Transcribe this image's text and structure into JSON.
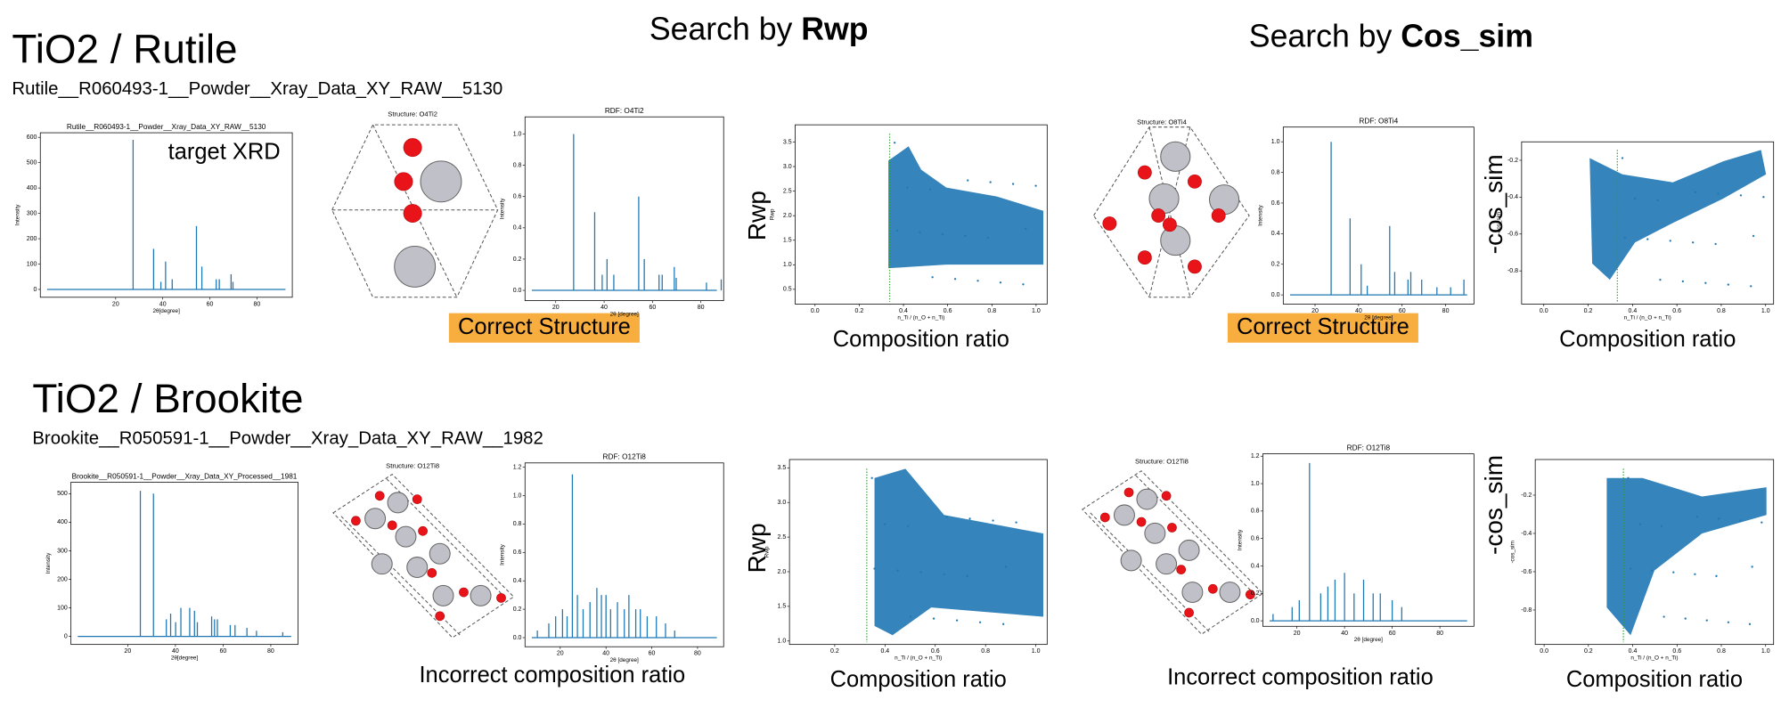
{
  "header": {
    "rwp_search": {
      "prefix": "Search by",
      "emphasis": "Rwp"
    },
    "cos_search": {
      "prefix": "Search by",
      "emphasis": "Cos_sim"
    }
  },
  "rows": [
    {
      "title": "TiO2 / Rutile",
      "file": "Rutile__R060493-1__Powder__Xray_Data_XY_RAW__5130",
      "target_xrd": {
        "title": "Rutile__R060493-1__Powder__Xray_Data_XY_RAW__5130",
        "annotation": "target XRD",
        "xlabel": "2θ[degree]",
        "ylabel": "Intensity",
        "xlim": [
          -12,
          95
        ],
        "ylim": [
          -31,
          618
        ],
        "xticks": [
          20,
          40,
          60,
          80
        ],
        "yticks": [
          0,
          100,
          200,
          300,
          400,
          500,
          600
        ],
        "color": "#1f77b4",
        "peaks": {
          "x": [
            27.4,
            36.1,
            39.2,
            41.2,
            44.0,
            54.3,
            56.6,
            62.7,
            64.0,
            69.0,
            69.8
          ],
          "y": [
            590,
            160,
            30,
            110,
            40,
            250,
            90,
            40,
            40,
            60,
            30
          ]
        }
      },
      "rwp": {
        "structure": "Structure: O4Ti2",
        "verdict": "Correct Structure",
        "verdict_color": "#f8ad3f",
        "rdf": {
          "title": "RDF: O4Ti2",
          "xlabel": "2θ [degree]",
          "ylabel": "Intensity",
          "xlim": [
            7.3,
            89.4
          ],
          "ylim": [
            -0.066,
            1.11
          ],
          "xticks": [
            20,
            40,
            60,
            80
          ],
          "yticks": [
            {
              "value": 0,
              "label": "0.0"
            },
            0.2,
            0.4,
            0.6,
            0.8,
            {
              "value": 1,
              "label": "1.0"
            }
          ],
          "color": "#1f77b4",
          "peaks": {
            "x": [
              27.4,
              36.1,
              39.2,
              41.2,
              44.0,
              54.3,
              56.6,
              62.7,
              64.0,
              69.0,
              69.8,
              82.3,
              88.4
            ],
            "y": [
              1.0,
              0.5,
              0.1,
              0.2,
              0.1,
              0.6,
              0.2,
              0.1,
              0.1,
              0.15,
              0.08,
              0.05,
              0.07
            ]
          }
        },
        "scatter": {
          "axis_title": "Rwp",
          "caption": "Composition ratio",
          "xlabel": "n_Ti / (n_O + n_Ti)",
          "ylabel": "Rwp",
          "xlim": [
            -0.09,
            1.05
          ],
          "ylim": [
            0.2,
            3.85
          ],
          "xticks": [
            {
              "value": 0,
              "label": "0.0"
            },
            0.2,
            0.4,
            0.6,
            0.8,
            {
              "value": 1,
              "label": "1.0"
            }
          ],
          "yticks": [
            0.5,
            {
              "value": 1,
              "label": "1.0"
            },
            1.5,
            {
              "value": 2,
              "label": "2.0"
            },
            2.5,
            {
              "value": 3,
              "label": "3.0"
            },
            3.5
          ],
          "color": "#1f77b4"
        }
      },
      "cos": {
        "structure": "Structure: O8Ti4",
        "verdict": "Correct Structure",
        "verdict_color": "#f8ad3f",
        "rdf": {
          "title": "RDF: O8Ti4",
          "xlabel": "2θ [degree]",
          "ylabel": "Intensity",
          "xlim": [
            5.4,
            93
          ],
          "ylim": [
            -0.06,
            1.096
          ],
          "xticks": [
            20,
            40,
            60,
            80
          ],
          "yticks": [
            {
              "value": 0,
              "label": "0.0"
            },
            0.2,
            0.4,
            0.6,
            0.8,
            {
              "value": 1,
              "label": "1.0"
            }
          ],
          "color": "#1f77b4",
          "peaks": {
            "x": [
              27.4,
              36.1,
              41.2,
              44.0,
              54.3,
              56.6,
              62.7,
              64.0,
              69.0,
              76.0,
              82.3,
              88.4
            ],
            "y": [
              1.0,
              0.5,
              0.2,
              0.06,
              0.45,
              0.15,
              0.1,
              0.15,
              0.1,
              0.05,
              0.05,
              0.1
            ]
          }
        },
        "scatter": {
          "axis_title": "-cos_sim",
          "caption": "Composition ratio",
          "xlabel": "n_Ti / (n_O + n_Ti)",
          "ylabel": "-cos_sim",
          "xlim": [
            -0.1,
            1.036
          ],
          "ylim": [
            -0.98,
            -0.1
          ],
          "xticks": [
            {
              "value": 0,
              "label": "0.0"
            },
            0.2,
            0.4,
            0.6,
            0.8,
            {
              "value": 1,
              "label": "1.0"
            }
          ],
          "yticks": [
            -0.8,
            -0.6,
            -0.4,
            -0.2
          ],
          "color": "#1f77b4"
        }
      }
    },
    {
      "title": "TiO2 / Brookite",
      "file": "Brookite__R050591-1__Powder__Xray_Data_XY_RAW__1982",
      "target_xrd": {
        "title": "Brookite__R050591-1__Powder__Xray_Data_XY_Processed__1981",
        "xlabel": "2θ[degree]",
        "ylabel": "Intensity",
        "xlim": [
          -3.8,
          91.4
        ],
        "ylim": [
          -28,
          540
        ],
        "xticks": [
          20,
          40,
          60,
          80
        ],
        "yticks": [
          0,
          100,
          200,
          300,
          400,
          500
        ],
        "color": "#1f77b4",
        "peaks": {
          "x": [
            25.3,
            30.8,
            36.2,
            38.0,
            40.1,
            42.3,
            46.0,
            48.0,
            49.2,
            55.2,
            56.4,
            57.6,
            63.0,
            65.0,
            70.0,
            74.0,
            85.0
          ],
          "y": [
            510,
            500,
            60,
            80,
            50,
            100,
            100,
            90,
            50,
            70,
            60,
            60,
            40,
            40,
            30,
            20,
            15
          ]
        }
      },
      "rwp": {
        "structure": "Structure: O12Ti8",
        "verdict": "Incorrect composition ratio",
        "rdf": {
          "title": "RDF: O12Ti8",
          "xlabel": "2θ [degree]",
          "ylabel": "Intensity",
          "xlim": [
            4.6,
            91.4
          ],
          "ylim": [
            -0.064,
            1.23
          ],
          "xticks": [
            20,
            40,
            60,
            80
          ],
          "yticks": [
            {
              "value": 0,
              "label": "0.0"
            },
            0.2,
            0.4,
            0.6,
            0.8,
            {
              "value": 1,
              "label": "1.0"
            },
            1.2
          ],
          "color": "#1f77b4",
          "peaks": {
            "x": [
              10,
              15,
              18,
              21,
              23,
              25.3,
              27.5,
              30,
              33,
              36,
              38,
              40,
              42,
              45,
              48,
              50,
              53,
              55,
              58,
              62,
              66,
              70
            ],
            "y": [
              0.05,
              0.1,
              0.15,
              0.2,
              0.15,
              1.15,
              0.3,
              0.2,
              0.25,
              0.35,
              0.3,
              0.3,
              0.2,
              0.25,
              0.2,
              0.3,
              0.2,
              0.2,
              0.15,
              0.15,
              0.1,
              0.05
            ]
          }
        },
        "scatter": {
          "axis_title": "Rwp",
          "caption": "Composition ratio",
          "xlabel": "n_Ti / (n_O + n_Ti)",
          "ylabel": "Rwp",
          "xlim": [
            0.02,
            1.045
          ],
          "ylim": [
            0.95,
            3.62
          ],
          "xticks": [
            0.2,
            0.4,
            0.6,
            0.8,
            {
              "value": 1,
              "label": "1.0"
            }
          ],
          "yticks": [
            {
              "value": 1,
              "label": "1.0"
            },
            1.5,
            {
              "value": 2,
              "label": "2.0"
            },
            2.5,
            {
              "value": 3,
              "label": "3.0"
            },
            3.5
          ],
          "color": "#1f77b4"
        }
      },
      "cos": {
        "structure": "Structure: O12Ti8",
        "verdict": "Incorrect composition ratio",
        "rdf": {
          "title": "RDF: O12Ti8",
          "xlabel": "2θ [degree]",
          "ylabel": "Intensity",
          "xlim": [
            5.7,
            94.3
          ],
          "ylim": [
            -0.04,
            1.217
          ],
          "xticks": [
            20,
            40,
            60,
            80
          ],
          "yticks": [
            {
              "value": 0,
              "label": "0.0"
            },
            0.2,
            0.4,
            0.6,
            0.8,
            {
              "value": 1,
              "label": "1.0"
            },
            1.2
          ],
          "color": "#1f77b4",
          "peaks": {
            "x": [
              10,
              18,
              21,
              25.3,
              30,
              33,
              36,
              40,
              44,
              48,
              52,
              55,
              60,
              64
            ],
            "y": [
              0.05,
              0.1,
              0.15,
              1.15,
              0.2,
              0.25,
              0.3,
              0.35,
              0.2,
              0.3,
              0.2,
              0.2,
              0.15,
              0.1
            ]
          }
        },
        "scatter": {
          "axis_title": "-cos_sim",
          "caption": "Composition ratio",
          "xlabel": "n_Ti / (n_O + n_Ti)",
          "ylabel": "-cos_sim",
          "xlim": [
            -0.04,
            1.036
          ],
          "ylim": [
            -0.98,
            -0.014
          ],
          "xticks": [
            {
              "value": 0,
              "label": "0.0"
            },
            0.2,
            0.4,
            0.6,
            0.8,
            {
              "value": 1,
              "label": "1.0"
            }
          ],
          "yticks": [
            -0.8,
            -0.6,
            -0.4,
            -0.2
          ],
          "color": "#1f77b4"
        }
      }
    }
  ]
}
